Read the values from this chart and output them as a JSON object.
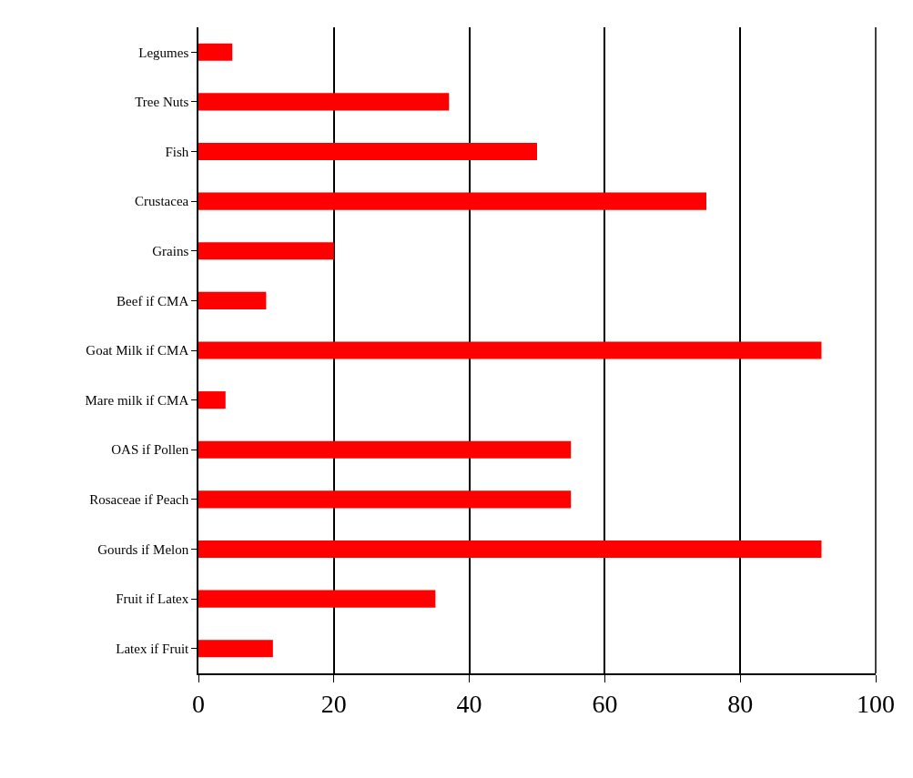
{
  "chart_data": {
    "type": "bar",
    "orientation": "horizontal",
    "categories": [
      "Legumes",
      "Tree Nuts",
      "Fish",
      "Crustacea",
      "Grains",
      "Beef if CMA",
      "Goat Milk if CMA",
      "Mare milk if CMA",
      "OAS if Pollen",
      "Rosaceae if Peach",
      "Gourds if Melon",
      "Fruit if Latex",
      "Latex if Fruit"
    ],
    "values": [
      5,
      37,
      50,
      75,
      20,
      10,
      92,
      4,
      55,
      55,
      92,
      35,
      11
    ],
    "color": "#ff0000",
    "xlim": [
      0,
      100
    ],
    "xticks": [
      0,
      20,
      40,
      60,
      80,
      100
    ],
    "grid": "x"
  }
}
